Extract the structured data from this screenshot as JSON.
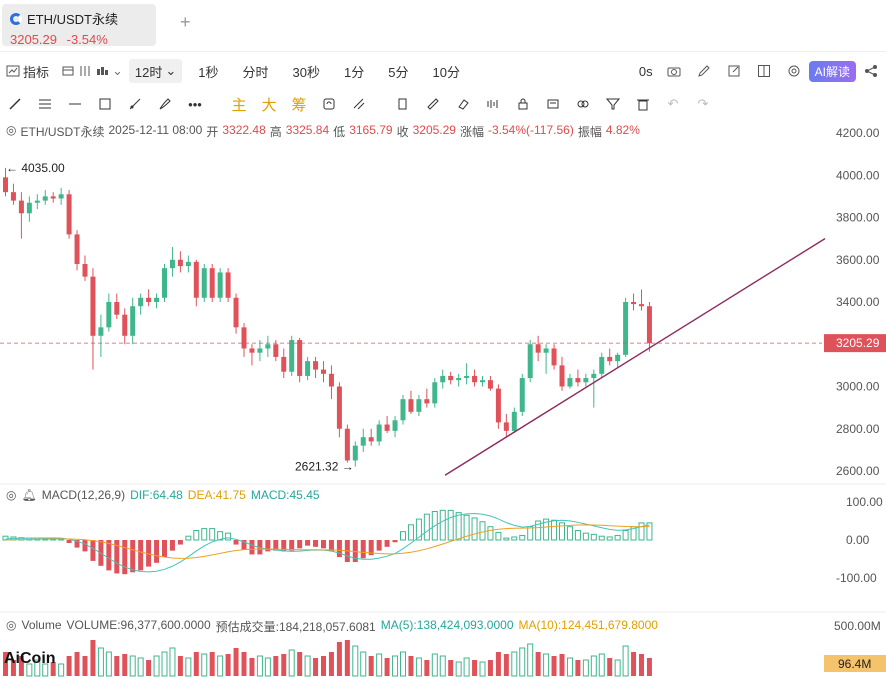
{
  "tab": {
    "symbol": "ETH/USDT永续",
    "price": "3205.29",
    "change": "-3.54%",
    "add": "+"
  },
  "toolbar": {
    "indicators": "指标",
    "interval": "12时",
    "intervals": [
      "1秒",
      "分时",
      "30秒",
      "1分",
      "5分",
      "10分"
    ],
    "countdown": "0s",
    "ai": "AI解读"
  },
  "draw": {
    "zhu": "主",
    "da": "大",
    "chou": "筹"
  },
  "ohlc": {
    "symbol": "ETH/USDT永续",
    "date": "2025-12-11 08:00",
    "open_l": "开",
    "open": "3322.48",
    "high_l": "高",
    "high": "3325.84",
    "low_l": "低",
    "low": "3165.79",
    "close_l": "收",
    "close": "3205.29",
    "chg_l": "涨幅",
    "chg": "-3.54%(-117.56)",
    "amp_l": "振幅",
    "amp": "4.82%"
  },
  "macd": {
    "label": "MACD(12,26,9)",
    "dif": "DIF:64.48",
    "dea": "DEA:41.75",
    "macd": "MACD:45.45"
  },
  "volume": {
    "label": "Volume",
    "vol": "VOLUME:96,377,600.0000",
    "est": "预估成交量:184,218,057.6081",
    "ma5": "MA(5):138,424,093.0000",
    "ma10": "MA(10):124,451,679.8000"
  },
  "brand": "AiCoin",
  "colors": {
    "up": "#3fb68b",
    "down": "#e0525a",
    "dif": "#42c4b8",
    "dea": "#f0a020",
    "trend": "#8e2a5e"
  },
  "chart_data": {
    "type": "candlestick",
    "y_ticks": [
      "4200.00",
      "4000.00",
      "3800.00",
      "3600.00",
      "3400.00",
      "3200.00",
      "3000.00",
      "2800.00",
      "2600.00"
    ],
    "macd_ticks": [
      "100.00",
      "0.00",
      "-100.00"
    ],
    "volume_tick": "500.00M",
    "current_price": "3205.29",
    "current_volume": "96.4M",
    "high_label": "4035.00",
    "low_label": "2621.32",
    "trend_line": [
      [
        445,
        2580
      ],
      [
        825,
        3700
      ]
    ],
    "candles": [
      [
        3990,
        4035,
        3900,
        3920
      ],
      [
        3920,
        3960,
        3860,
        3880
      ],
      [
        3880,
        3920,
        3700,
        3820
      ],
      [
        3820,
        3900,
        3780,
        3870
      ],
      [
        3870,
        3910,
        3840,
        3880
      ],
      [
        3880,
        3930,
        3860,
        3900
      ],
      [
        3900,
        3920,
        3870,
        3890
      ],
      [
        3890,
        3940,
        3860,
        3910
      ],
      [
        3910,
        3930,
        3700,
        3720
      ],
      [
        3720,
        3740,
        3550,
        3580
      ],
      [
        3580,
        3620,
        3500,
        3520
      ],
      [
        3520,
        3560,
        3080,
        3240
      ],
      [
        3240,
        3340,
        3140,
        3280
      ],
      [
        3280,
        3440,
        3260,
        3400
      ],
      [
        3400,
        3440,
        3320,
        3340
      ],
      [
        3340,
        3370,
        3200,
        3240
      ],
      [
        3240,
        3420,
        3200,
        3380
      ],
      [
        3380,
        3440,
        3340,
        3420
      ],
      [
        3420,
        3460,
        3380,
        3400
      ],
      [
        3400,
        3440,
        3370,
        3420
      ],
      [
        3420,
        3580,
        3400,
        3560
      ],
      [
        3560,
        3660,
        3520,
        3600
      ],
      [
        3600,
        3640,
        3540,
        3570
      ],
      [
        3570,
        3620,
        3540,
        3590
      ],
      [
        3590,
        3600,
        3380,
        3420
      ],
      [
        3420,
        3580,
        3400,
        3560
      ],
      [
        3560,
        3580,
        3400,
        3420
      ],
      [
        3420,
        3560,
        3400,
        3540
      ],
      [
        3540,
        3560,
        3400,
        3420
      ],
      [
        3420,
        3440,
        3250,
        3280
      ],
      [
        3280,
        3300,
        3140,
        3180
      ],
      [
        3180,
        3200,
        3100,
        3160
      ],
      [
        3160,
        3220,
        3120,
        3180
      ],
      [
        3180,
        3240,
        3140,
        3200
      ],
      [
        3200,
        3220,
        3120,
        3140
      ],
      [
        3140,
        3180,
        3040,
        3070
      ],
      [
        3070,
        3240,
        3050,
        3220
      ],
      [
        3220,
        3230,
        3020,
        3050
      ],
      [
        3050,
        3140,
        3030,
        3120
      ],
      [
        3120,
        3140,
        3040,
        3080
      ],
      [
        3080,
        3120,
        3020,
        3060
      ],
      [
        3060,
        3100,
        2940,
        3000
      ],
      [
        3000,
        3020,
        2760,
        2800
      ],
      [
        2800,
        2820,
        2640,
        2650
      ],
      [
        2650,
        2740,
        2621,
        2720
      ],
      [
        2720,
        2800,
        2690,
        2760
      ],
      [
        2760,
        2800,
        2720,
        2740
      ],
      [
        2740,
        2840,
        2720,
        2820
      ],
      [
        2820,
        2860,
        2780,
        2790
      ],
      [
        2790,
        2860,
        2760,
        2840
      ],
      [
        2840,
        2960,
        2820,
        2940
      ],
      [
        2940,
        2980,
        2870,
        2880
      ],
      [
        2880,
        2960,
        2860,
        2940
      ],
      [
        2940,
        2990,
        2900,
        2920
      ],
      [
        2920,
        3040,
        2900,
        3020
      ],
      [
        3020,
        3080,
        2990,
        3050
      ],
      [
        3050,
        3070,
        3010,
        3030
      ],
      [
        3030,
        3060,
        3000,
        3040
      ],
      [
        3040,
        3110,
        3010,
        3050
      ],
      [
        3050,
        3080,
        3000,
        3020
      ],
      [
        3020,
        3050,
        3000,
        3030
      ],
      [
        3030,
        3050,
        2980,
        2990
      ],
      [
        2990,
        3010,
        2800,
        2830
      ],
      [
        2830,
        2870,
        2760,
        2790
      ],
      [
        2790,
        2900,
        2780,
        2880
      ],
      [
        2880,
        3060,
        2860,
        3040
      ],
      [
        3040,
        3220,
        3020,
        3200
      ],
      [
        3200,
        3240,
        3120,
        3160
      ],
      [
        3160,
        3200,
        3060,
        3180
      ],
      [
        3180,
        3200,
        3080,
        3100
      ],
      [
        3100,
        3140,
        2980,
        3000
      ],
      [
        3000,
        3060,
        2990,
        3040
      ],
      [
        3040,
        3080,
        3000,
        3020
      ],
      [
        3020,
        3060,
        3000,
        3040
      ],
      [
        3040,
        3080,
        2900,
        3060
      ],
      [
        3060,
        3160,
        3040,
        3140
      ],
      [
        3140,
        3180,
        3100,
        3120
      ],
      [
        3120,
        3160,
        3090,
        3150
      ],
      [
        3150,
        3420,
        3140,
        3400
      ],
      [
        3400,
        3440,
        3360,
        3390
      ],
      [
        3390,
        3460,
        3360,
        3380
      ],
      [
        3380,
        3400,
        3165,
        3205
      ]
    ],
    "macd_hist": [
      10,
      8,
      6,
      5,
      5,
      4,
      4,
      3,
      -8,
      -20,
      -30,
      -55,
      -68,
      -80,
      -88,
      -90,
      -85,
      -80,
      -70,
      -60,
      -45,
      -28,
      -12,
      10,
      25,
      30,
      30,
      22,
      18,
      -12,
      -25,
      -38,
      -38,
      -30,
      -28,
      -30,
      -28,
      -22,
      -15,
      -18,
      -22,
      -30,
      -45,
      -58,
      -58,
      -48,
      -40,
      -28,
      -18,
      -6,
      22,
      40,
      55,
      68,
      75,
      78,
      78,
      72,
      65,
      58,
      48,
      35,
      20,
      5,
      8,
      12,
      35,
      50,
      55,
      52,
      45,
      35,
      25,
      18,
      15,
      10,
      8,
      12,
      25,
      35,
      45,
      45
    ],
    "volume_ratio": [
      0.6,
      0.4,
      0.5,
      0.3,
      0.4,
      0.3,
      0.35,
      0.3,
      0.5,
      0.6,
      0.5,
      0.9,
      0.7,
      0.6,
      0.5,
      0.55,
      0.5,
      0.45,
      0.4,
      0.5,
      0.6,
      0.7,
      0.5,
      0.45,
      0.6,
      0.55,
      0.6,
      0.5,
      0.55,
      0.7,
      0.6,
      0.45,
      0.5,
      0.45,
      0.5,
      0.55,
      0.65,
      0.6,
      0.5,
      0.45,
      0.5,
      0.6,
      0.85,
      0.9,
      0.75,
      0.6,
      0.5,
      0.55,
      0.45,
      0.5,
      0.6,
      0.5,
      0.45,
      0.4,
      0.55,
      0.5,
      0.4,
      0.35,
      0.45,
      0.4,
      0.35,
      0.4,
      0.6,
      0.55,
      0.6,
      0.7,
      0.8,
      0.6,
      0.55,
      0.5,
      0.55,
      0.45,
      0.4,
      0.4,
      0.5,
      0.55,
      0.45,
      0.4,
      0.75,
      0.6,
      0.55,
      0.45
    ]
  }
}
